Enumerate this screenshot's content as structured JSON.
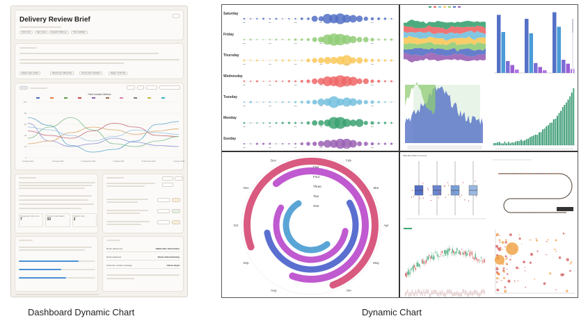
{
  "captions": {
    "left": "Dashboard Dynamic Chart",
    "right": "Dynamic Chart"
  },
  "dashboard": {
    "title": "Delivery Review Brief",
    "filter_pills": [
      "Sprint-level",
      "Epic review",
      "Exception follow-up",
      "Team feedback"
    ],
    "summary_tags": [
      "Region: East corridor",
      "Rework type: Mixed ship",
      "Service level: Standard",
      "Region: North hub"
    ],
    "chart_title": "Field Incident Metrics",
    "x_ticks": [
      "10 August 2021",
      "15 August 2021",
      "21 September 2021",
      "1 October 2021",
      "16 November 2021",
      "1 January 2022"
    ],
    "y_ticks": [
      "100",
      "80",
      "60",
      "40",
      "20",
      "0"
    ],
    "legend_colors": [
      "#4a6fb3",
      "#e07a3a",
      "#5b9e4a",
      "#c2453c",
      "#8a5fb3",
      "#9a6a45",
      "#d47fb0",
      "#7a7a7a",
      "#c8b83a",
      "#3ab0c2"
    ],
    "series": [
      {
        "color": "#5aa5c9",
        "values": [
          72,
          58,
          22,
          10,
          15,
          30,
          60,
          65
        ]
      },
      {
        "color": "#c46a7a",
        "values": [
          48,
          40,
          35,
          48,
          62,
          55,
          40,
          38
        ]
      },
      {
        "color": "#7dbd8a",
        "values": [
          35,
          55,
          72,
          50,
          25,
          20,
          30,
          38
        ]
      },
      {
        "color": "#8c8fd6",
        "values": [
          62,
          30,
          20,
          25,
          35,
          28,
          22,
          20
        ]
      },
      {
        "color": "#d8a56a",
        "values": [
          25,
          30,
          45,
          55,
          50,
          42,
          48,
          52
        ]
      },
      {
        "color": "#9ac4e0",
        "values": [
          55,
          50,
          40,
          30,
          38,
          50,
          45,
          42
        ]
      }
    ],
    "kpis": [
      {
        "label": "Measured cycle time",
        "value": "7"
      },
      {
        "label": "Support calls taken",
        "value": "33"
      },
      {
        "label": "Rework rate",
        "value": "2"
      }
    ],
    "progress": [
      0.78,
      0.55,
      0.62
    ],
    "metric_rows": [
      {
        "label": "Route adherence",
        "value": "Stable after intervention"
      },
      {
        "label": "Dwell readiness",
        "value": "Needs data hardening"
      },
      {
        "label": "Customer contact coverage",
        "value": "Above target"
      }
    ]
  },
  "collage": {
    "weekdays": [
      "Saturday",
      "Friday",
      "Thursday",
      "Wednesday",
      "Tuesday",
      "Monday",
      "Sunday"
    ],
    "weekday_colors": [
      "#5470c6",
      "#91cc75",
      "#fac858",
      "#ee6666",
      "#73c0de",
      "#3ba272",
      "#9a60b4"
    ],
    "polar_months": [
      "Jan 2021",
      "Feb",
      "Mar",
      "Apr",
      "May",
      "Jun",
      "Jul",
      "Aug",
      "Sep",
      "Oct",
      "Nov",
      "Dec"
    ],
    "polar_rings": [
      "Five",
      "Four",
      "Three",
      "Two",
      "One"
    ],
    "boxplot_title": "Male Box Ratio of Income"
  }
}
